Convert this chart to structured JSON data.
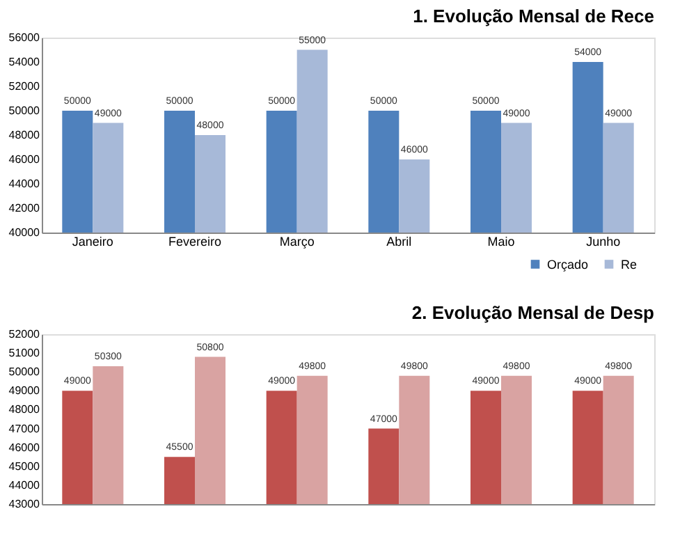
{
  "chart_data": [
    {
      "type": "bar",
      "title": "1. Evolução Mensal de Rece",
      "categories": [
        "Janeiro",
        "Fevereiro",
        "Março",
        "Abril",
        "Maio",
        "Junho"
      ],
      "series": [
        {
          "name": "Orçado",
          "color": "#4f81bd",
          "values": [
            50000,
            50000,
            50000,
            50000,
            50000,
            54000
          ]
        },
        {
          "name": "Re",
          "color": "#a7b9d8",
          "values": [
            49000,
            48000,
            55000,
            46000,
            49000,
            49000
          ]
        }
      ],
      "ylim": [
        40000,
        56000
      ],
      "yticks": [
        40000,
        42000,
        44000,
        46000,
        48000,
        50000,
        52000,
        54000,
        56000
      ],
      "grid": false,
      "legend": "bottom right",
      "data_labels": true
    },
    {
      "type": "bar",
      "title": "2. Evolução Mensal de Desp",
      "categories": [
        null,
        null,
        null,
        null,
        null,
        null
      ],
      "series": [
        {
          "color": "#c0504d",
          "values": [
            49000,
            45500,
            49000,
            47000,
            49000,
            49000
          ]
        },
        {
          "color": "#d9a3a2",
          "values": [
            50300,
            50800,
            49800,
            49800,
            49800,
            49800
          ]
        }
      ],
      "ylim": [
        43000,
        52000
      ],
      "yticks": [
        43000,
        44000,
        45000,
        46000,
        47000,
        48000,
        49000,
        50000,
        51000,
        52000
      ],
      "grid": false,
      "legend": false,
      "data_labels": true
    }
  ]
}
